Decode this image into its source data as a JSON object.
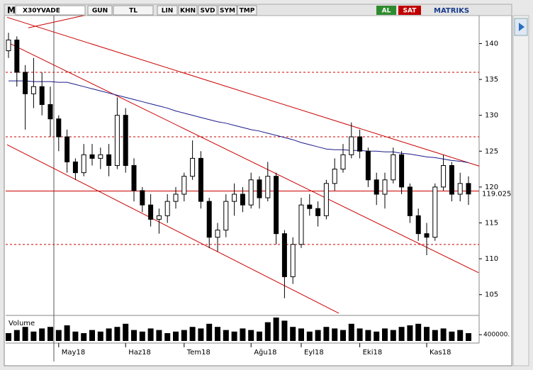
{
  "ui": {
    "logo": "M",
    "symbol": "X30YVADE",
    "buttons": [
      "GUN",
      "TL",
      "LIN",
      "KHN",
      "SVD",
      "SYM",
      "TMP"
    ],
    "buy": "AL",
    "sell": "SAT",
    "brand": "MATRIKS"
  },
  "chart_data": {
    "type": "candlestick",
    "ylim": [
      102.3,
      143.9
    ],
    "yticks": [
      105,
      110,
      115,
      120,
      125,
      130,
      135,
      140
    ],
    "last_price": 119.025,
    "xticks": [
      {
        "value": 6,
        "label": "May18"
      },
      {
        "value": 14,
        "label": "Haz18"
      },
      {
        "value": 21,
        "label": "Tem18"
      },
      {
        "value": 29,
        "label": "Ağu18"
      },
      {
        "value": 35,
        "label": "Eyl18"
      },
      {
        "value": 42,
        "label": "Eki18"
      },
      {
        "value": 50,
        "label": "Kas18"
      }
    ],
    "up_color": "#ffffff",
    "down_color": "#000000",
    "open": [
      139,
      140.5,
      136,
      133,
      134,
      131.5,
      129.5,
      127,
      123.5,
      122,
      124.5,
      124,
      124.5,
      123,
      130,
      123,
      119.5,
      117.5,
      115.5,
      116,
      118,
      119,
      121.5,
      124,
      118,
      113,
      114,
      118,
      119,
      117.5,
      121,
      118.5,
      121.5,
      113.5,
      107.5,
      112,
      117.5,
      117,
      116,
      120.5,
      122.5,
      124.5,
      127,
      125,
      121,
      119,
      121,
      124.5,
      120,
      116,
      113.5,
      113,
      120,
      123,
      119,
      120.5
    ],
    "high": [
      141.5,
      141,
      137,
      138,
      136,
      134,
      130,
      128,
      124,
      126,
      126,
      125.5,
      126,
      132.5,
      131,
      124,
      120,
      119,
      117,
      119,
      120,
      122,
      126.5,
      125,
      118.5,
      115,
      119,
      120.5,
      120,
      122,
      121.5,
      123.5,
      122,
      114,
      113,
      118.5,
      119,
      118,
      121,
      124,
      126,
      129,
      128,
      125.5,
      122,
      122,
      125.5,
      125,
      120.5,
      117,
      115,
      120.5,
      124.5,
      123.5,
      122,
      121.5
    ],
    "low": [
      138,
      134,
      128,
      131,
      130,
      127,
      125,
      122,
      121,
      121.5,
      123,
      122.5,
      121.5,
      122.5,
      122,
      118,
      116.5,
      114.5,
      113.5,
      115,
      117,
      118,
      121,
      117,
      111.5,
      111,
      113,
      116,
      116.5,
      117,
      117,
      118,
      112,
      104.5,
      106.5,
      111.5,
      116,
      114.5,
      115.5,
      119.5,
      122,
      124,
      124,
      120,
      117.5,
      117,
      120.5,
      119,
      115,
      112.5,
      110.5,
      112.5,
      119.5,
      118,
      118,
      117.5
    ],
    "close": [
      140.5,
      136,
      133,
      134,
      131.5,
      129.5,
      127,
      123.5,
      122,
      124.5,
      124,
      124.5,
      123,
      130,
      123,
      119.5,
      117.5,
      115.5,
      116,
      118,
      119,
      121.5,
      124,
      118,
      113,
      114,
      118,
      119,
      117.5,
      121,
      118.5,
      121.5,
      113.5,
      107.5,
      112,
      117.5,
      117,
      116,
      120.5,
      122.5,
      124.5,
      127,
      125,
      121,
      119,
      121,
      124.5,
      120,
      116,
      113.5,
      113,
      120,
      123,
      119,
      120.5,
      119.025
    ],
    "ma": {
      "color": "#1a1a8c",
      "values": [
        134.8,
        134.8,
        134.8,
        134.7,
        134.7,
        134.7,
        134.6,
        134.6,
        134.3,
        134.0,
        133.7,
        133.4,
        133.1,
        132.8,
        132.5,
        132.2,
        131.9,
        131.6,
        131.3,
        131.0,
        130.6,
        130.3,
        130.0,
        129.7,
        129.4,
        129.1,
        128.9,
        128.6,
        128.3,
        128.0,
        127.8,
        127.5,
        127.2,
        126.9,
        126.6,
        126.2,
        125.9,
        125.6,
        125.3,
        125.2,
        125.2,
        125.1,
        125.1,
        125.0,
        125.0,
        124.9,
        124.9,
        124.7,
        124.6,
        124.4,
        124.2,
        124.1,
        123.9,
        123.7,
        123.6,
        123.4
      ]
    },
    "trend_lines": [
      {
        "from": [
          -0.17,
          143.66
        ],
        "to": [
          56.6,
          122.8
        ]
      },
      {
        "from": [
          -0.17,
          140.2
        ],
        "to": [
          56.2,
          108.06
        ]
      },
      {
        "from": [
          -0.17,
          125.9
        ],
        "to": [
          39.5,
          102.4
        ]
      },
      {
        "from": [
          2.37,
          142.2
        ],
        "to": [
          9.15,
          143.95
        ]
      }
    ],
    "line_color": "#cc0000",
    "hlines": [
      {
        "value": 136,
        "dashed": true
      },
      {
        "value": 127,
        "dashed": true
      },
      {
        "value": 112,
        "dashed": true
      },
      {
        "value": 119.45,
        "dashed": false
      }
    ],
    "volume": {
      "label": "Volume",
      "color": "#000000",
      "ylim": [
        0,
        1500000
      ],
      "yticks": [
        {
          "value": 400000,
          "label": "400000."
        }
      ],
      "values": [
        500000,
        700000,
        900000,
        600000,
        800000,
        900000,
        700000,
        1000000,
        600000,
        500000,
        700000,
        600000,
        800000,
        900000,
        1100000,
        700000,
        600000,
        800000,
        700000,
        500000,
        600000,
        700000,
        900000,
        800000,
        1100000,
        900000,
        700000,
        600000,
        800000,
        700000,
        600000,
        1200000,
        1500000,
        1300000,
        900000,
        800000,
        600000,
        700000,
        900000,
        800000,
        700000,
        1100000,
        800000,
        700000,
        600000,
        800000,
        700000,
        900000,
        1000000,
        1100000,
        900000,
        700000,
        800000,
        600000,
        700000,
        500000
      ]
    }
  }
}
